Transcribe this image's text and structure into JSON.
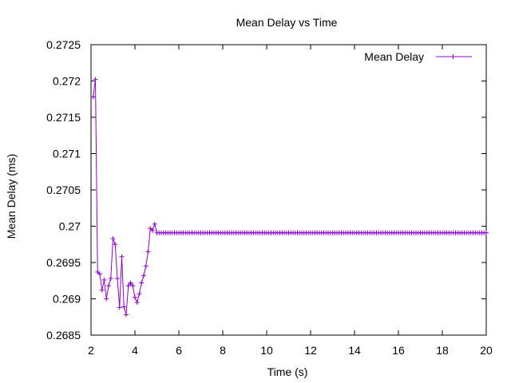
{
  "chart_data": {
    "type": "line",
    "title": "Mean Delay vs Time",
    "xlabel": "Time (s)",
    "ylabel": "Mean Delay (ms)",
    "xlim": [
      2,
      20
    ],
    "ylim": [
      0.2685,
      0.2725
    ],
    "xticks": [
      2,
      4,
      6,
      8,
      10,
      12,
      14,
      16,
      18,
      20
    ],
    "xtick_labels": [
      "2",
      "4",
      "6",
      "8",
      "10",
      "12",
      "14",
      "16",
      "18",
      "20"
    ],
    "yticks": [
      0.2685,
      0.269,
      0.2695,
      0.27,
      0.2705,
      0.271,
      0.2715,
      0.272,
      0.2725
    ],
    "ytick_labels": [
      "0.2685",
      "0.269",
      "0.2695",
      "0.27",
      "0.2705",
      "0.271",
      "0.2715",
      "0.272",
      "0.2725"
    ],
    "grid": false,
    "legend_position": "top-right",
    "marker": "plus",
    "series": [
      {
        "name": "Mean Delay",
        "color": "#9400d3",
        "x": [
          2.1,
          2.2,
          2.3,
          2.4,
          2.5,
          2.6,
          2.7,
          2.8,
          2.9,
          3.0,
          3.1,
          3.2,
          3.3,
          3.4,
          3.5,
          3.6,
          3.7,
          3.8,
          3.9,
          4.0,
          4.1,
          4.2,
          4.3,
          4.4,
          4.5,
          4.6,
          4.7,
          4.8,
          4.9,
          5.0
        ],
        "y": [
          0.27178,
          0.27202,
          0.26937,
          0.26934,
          0.26912,
          0.26926,
          0.269,
          0.26918,
          0.26928,
          0.26983,
          0.26975,
          0.26928,
          0.26888,
          0.26958,
          0.26889,
          0.26878,
          0.26918,
          0.26922,
          0.26918,
          0.26902,
          0.26895,
          0.26907,
          0.26922,
          0.26932,
          0.26945,
          0.26965,
          0.26997,
          0.26994,
          0.27003,
          0.26991
        ],
        "steady_from": 5.0,
        "steady_to": 20.0,
        "steady_step": 0.1,
        "steady_value": 0.26991
      }
    ]
  }
}
